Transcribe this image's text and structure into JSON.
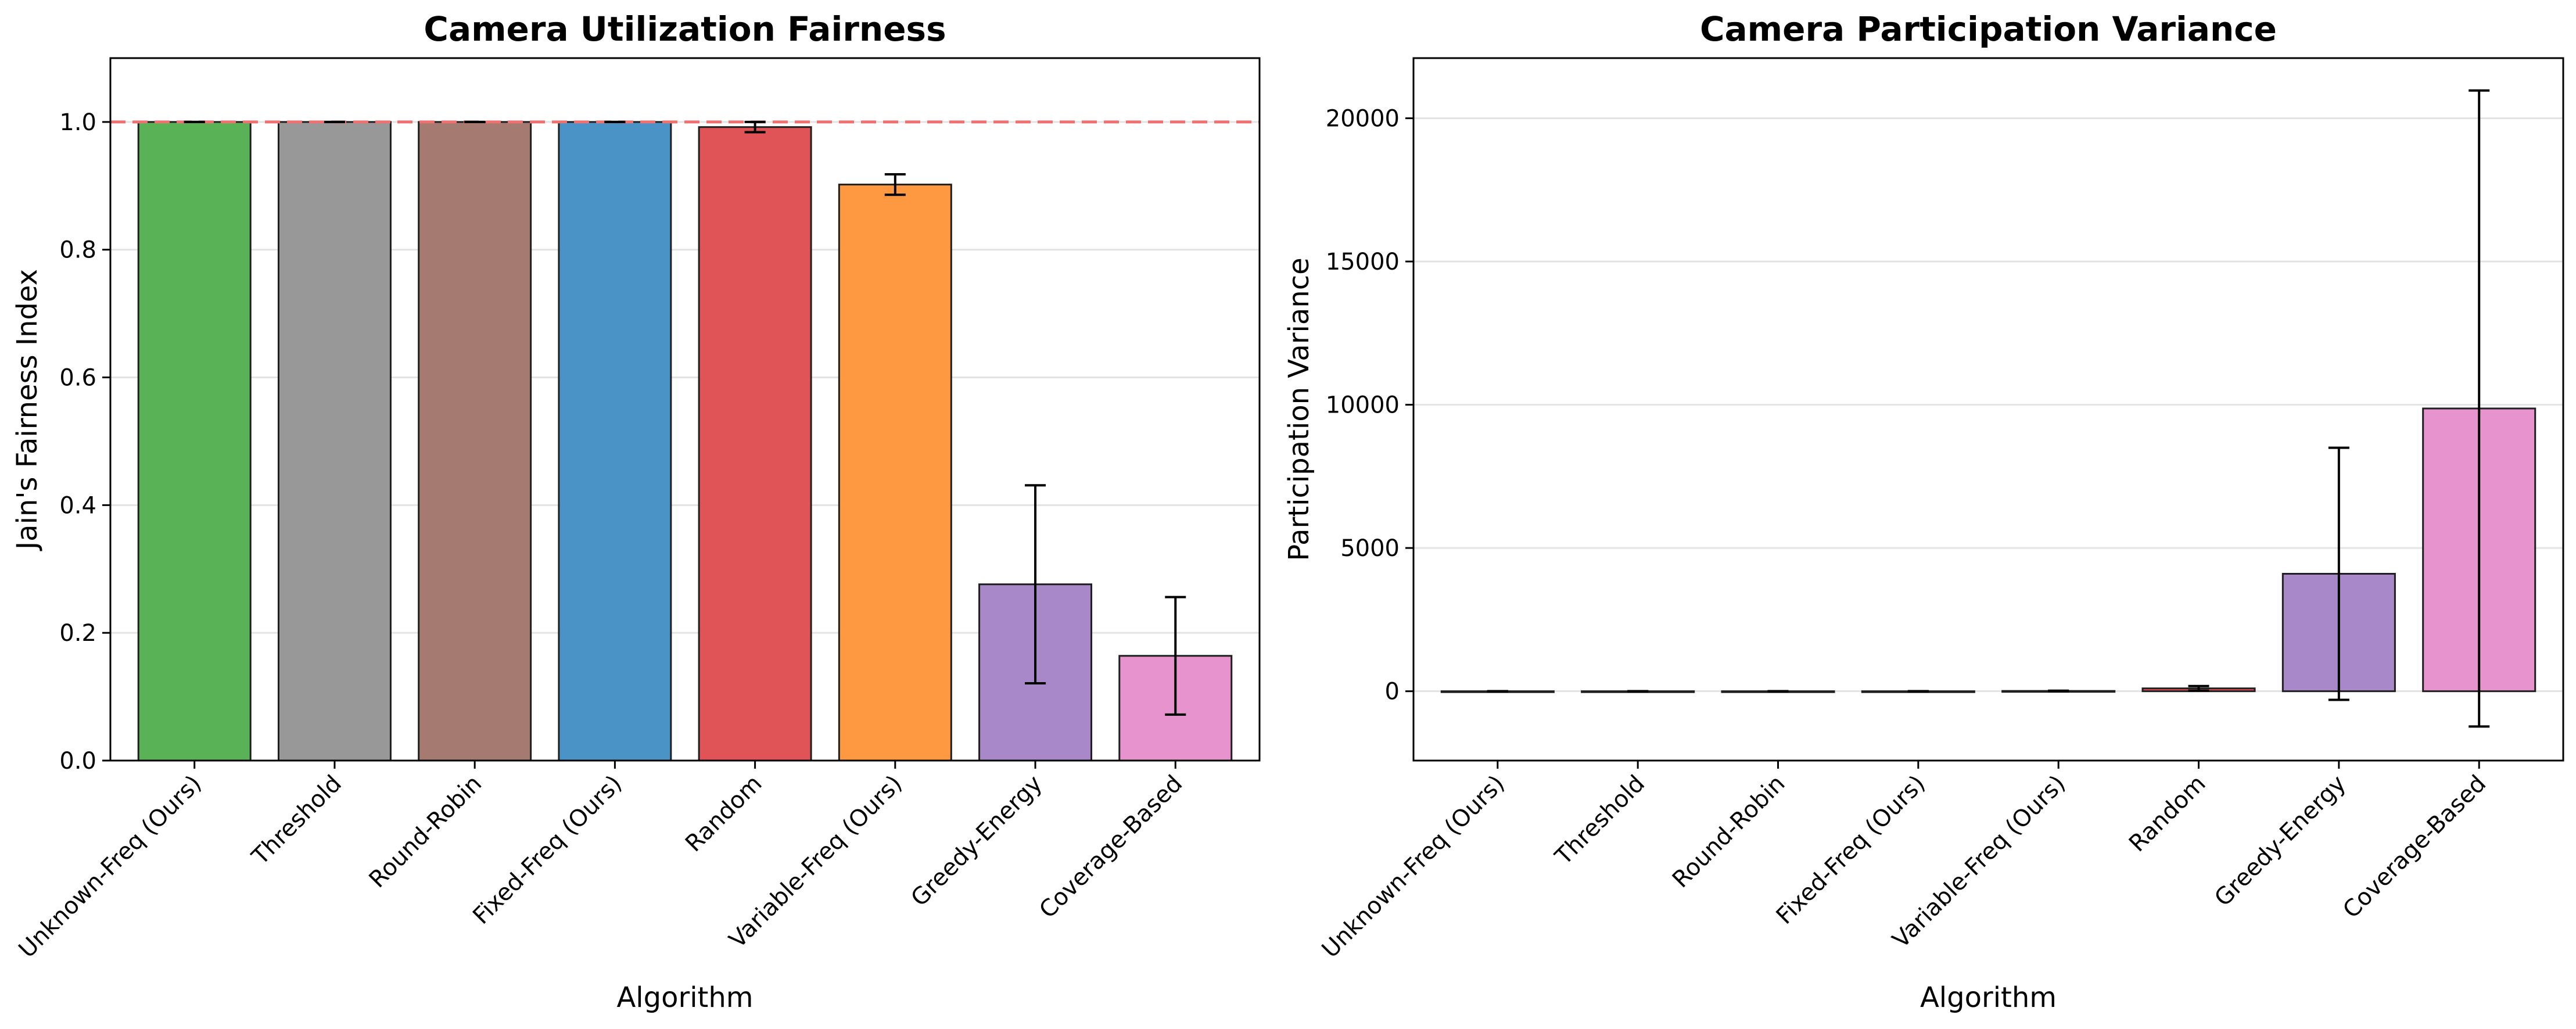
{
  "chart_data": [
    {
      "type": "bar",
      "title": "Camera Utilization Fairness",
      "xlabel": "Algorithm",
      "ylabel": "Jain's Fairness Index",
      "categories": [
        "Unknown-Freq (Ours)",
        "Threshold",
        "Round-Robin",
        "Fixed-Freq (Ours)",
        "Random",
        "Variable-Freq (Ours)",
        "Greedy-Energy",
        "Coverage-Based"
      ],
      "values": [
        1.0,
        1.0,
        1.0,
        1.0,
        0.992,
        0.902,
        0.276,
        0.164
      ],
      "errors": [
        0.0,
        0.0,
        0.0,
        0.0,
        0.008,
        0.016,
        0.155,
        0.092
      ],
      "colors": [
        "#59b356",
        "#989898",
        "#a57a70",
        "#4a93c6",
        "#e05458",
        "#fe9941",
        "#a988c9",
        "#e793cd"
      ],
      "reference_line": 1.0,
      "reference_color": "#f07070",
      "ylim": [
        0,
        1.1
      ],
      "yticks": [
        0.0,
        0.2,
        0.4,
        0.6,
        0.8,
        1.0
      ],
      "ytick_labels": [
        "0.0",
        "0.2",
        "0.4",
        "0.6",
        "0.8",
        "1.0"
      ],
      "grid": "y"
    },
    {
      "type": "bar",
      "title": "Camera Participation Variance",
      "xlabel": "Algorithm",
      "ylabel": "Participation Variance",
      "categories": [
        "Unknown-Freq (Ours)",
        "Threshold",
        "Round-Robin",
        "Fixed-Freq (Ours)",
        "Variable-Freq (Ours)",
        "Random",
        "Greedy-Energy",
        "Coverage-Based"
      ],
      "values": [
        0,
        0,
        0,
        0,
        10,
        100,
        4100,
        9870
      ],
      "errors": [
        0,
        0,
        0,
        0,
        10,
        80,
        4400,
        11100
      ],
      "colors": [
        "#59b356",
        "#989898",
        "#a57a70",
        "#4a93c6",
        "#fe9941",
        "#e05458",
        "#a988c9",
        "#e793cd"
      ],
      "ylim": [
        -2420,
        22100
      ],
      "yticks": [
        0,
        5000,
        10000,
        15000,
        20000
      ],
      "ytick_labels": [
        "0",
        "5000",
        "10000",
        "15000",
        "20000"
      ],
      "grid": "y"
    }
  ]
}
